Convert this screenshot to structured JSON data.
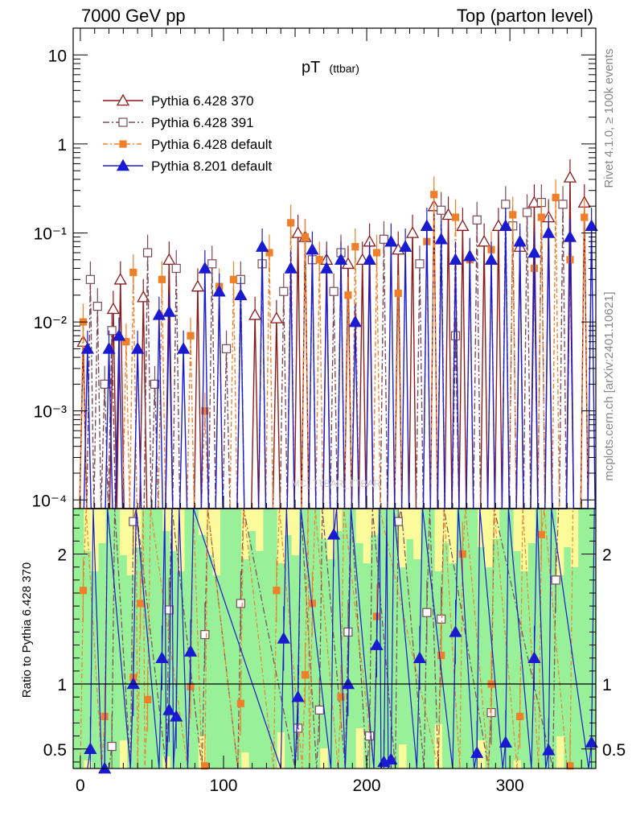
{
  "header": {
    "left": "7000 GeV pp",
    "right": "Top (parton level)"
  },
  "side_labels": {
    "rivet": "Rivet 4.1.0, ≥ 100k events",
    "mcplots": "mcplots.cern.ch [arXiv:2401.10621]"
  },
  "watermark": "MC_TTBAR_TTBAR",
  "colors": {
    "pythia6_370": "#8b1a1a",
    "pythia6_391": "#7a4a5a",
    "pythia6_default": "#f07f2a",
    "pythia8_default": "#1a1ad0",
    "band_green": "#98f098",
    "band_yellow": "#fbfb9b"
  },
  "chart_data": [
    {
      "type": "line",
      "panel": "main",
      "title": "pT",
      "title_sub": "(ttbar)",
      "xlabel": "",
      "ylabel": "",
      "yscale": "log",
      "xlim": [
        -5,
        360
      ],
      "ylim": [
        8e-05,
        20
      ],
      "x_ticks": [
        0,
        100,
        200,
        300
      ],
      "y_ticks": [
        {
          "value": 10,
          "label": "10"
        },
        {
          "value": 1,
          "label": "1"
        },
        {
          "value": 0.1,
          "label": "10⁻¹"
        },
        {
          "value": 0.01,
          "label": "10⁻²"
        },
        {
          "value": 0.001,
          "label": "10⁻³"
        },
        {
          "value": 0.0001,
          "label": "10⁻⁴"
        }
      ],
      "legend": [
        {
          "name": "Pythia 6.428 370",
          "marker": "open-triangle",
          "style": "solid"
        },
        {
          "name": "Pythia 6.428 391",
          "marker": "open-square",
          "style": "dashdot"
        },
        {
          "name": "Pythia 6.428 default",
          "marker": "filled-square",
          "style": "dashdot"
        },
        {
          "name": "Pythia 8.201 default",
          "marker": "filled-triangle",
          "style": "solid"
        }
      ],
      "series": [
        {
          "name": "Pythia 6.428 370",
          "x": [
            2,
            23,
            28,
            44,
            62,
            82,
            122,
            137,
            152,
            157,
            172,
            187,
            197,
            202,
            222,
            232,
            247,
            257,
            267,
            282,
            292,
            307,
            317,
            327,
            342,
            352
          ],
          "values": [
            0.006,
            0.014,
            0.03,
            0.019,
            0.05,
            0.025,
            0.012,
            0.011,
            0.1,
            0.09,
            0.05,
            0.045,
            0.05,
            0.08,
            0.065,
            0.1,
            0.2,
            0.16,
            0.12,
            0.08,
            0.12,
            0.07,
            0.22,
            0.15,
            0.42,
            0.22
          ]
        },
        {
          "name": "Pythia 6.428 391",
          "x": [
            7,
            12,
            17,
            22,
            47,
            52,
            67,
            92,
            102,
            112,
            127,
            142,
            162,
            177,
            182,
            212,
            237,
            252,
            262,
            277,
            297,
            302,
            312,
            322,
            337
          ],
          "values": [
            0.03,
            0.015,
            0.002,
            0.008,
            0.06,
            0.002,
            0.04,
            0.045,
            0.005,
            0.03,
            0.045,
            0.022,
            0.05,
            0.022,
            0.06,
            0.085,
            0.045,
            0.18,
            0.007,
            0.14,
            0.21,
            0.12,
            0.17,
            0.22,
            0.21
          ]
        },
        {
          "name": "Pythia 6.428 default",
          "x": [
            2,
            32,
            37,
            57,
            77,
            87,
            97,
            107,
            132,
            147,
            157,
            167,
            187,
            192,
            207,
            222,
            242,
            247,
            262,
            272,
            287,
            302,
            317,
            322,
            332,
            342,
            352
          ],
          "values": [
            0.01,
            0.006,
            0.036,
            0.03,
            0.007,
            0.001,
            0.025,
            0.03,
            0.06,
            0.13,
            0.09,
            0.05,
            0.02,
            0.07,
            0.06,
            0.021,
            0.08,
            0.27,
            0.15,
            0.05,
            0.065,
            0.16,
            0.04,
            0.15,
            0.25,
            0.05,
            0.15
          ]
        },
        {
          "name": "Pythia 8.201 default",
          "x": [
            5,
            20,
            27,
            40,
            55,
            62,
            72,
            87,
            97,
            112,
            127,
            147,
            162,
            172,
            182,
            192,
            202,
            217,
            227,
            242,
            252,
            262,
            272,
            287,
            297,
            307,
            317,
            327,
            342,
            357
          ],
          "values": [
            0.005,
            0.005,
            0.007,
            0.005,
            0.012,
            0.013,
            0.005,
            0.04,
            0.022,
            0.02,
            0.07,
            0.04,
            0.065,
            0.04,
            0.05,
            0.01,
            0.05,
            0.08,
            0.07,
            0.12,
            0.085,
            0.05,
            0.055,
            0.05,
            0.12,
            0.08,
            0.06,
            0.1,
            0.09,
            0.12
          ]
        }
      ]
    },
    {
      "type": "line",
      "panel": "ratio",
      "ylabel": "Ratio to Pythia 6.428 370",
      "xlim": [
        -5,
        360
      ],
      "ylim": [
        0.35,
        2.35
      ],
      "x_ticks": [
        0,
        100,
        200,
        300
      ],
      "y_ticks": [
        0.5,
        1,
        2
      ],
      "reference": 1,
      "series": [
        {
          "name": "Pythia 6.428 391",
          "x": [
            22,
            37,
            62,
            87,
            112,
            152,
            167,
            187,
            202,
            222,
            242,
            252,
            287,
            332
          ],
          "values": [
            0.52,
            2.25,
            1.57,
            1.38,
            1.62,
            0.66,
            0.8,
            1.4,
            0.6,
            2.25,
            1.55,
            1.5,
            0.78,
            1.8
          ]
        },
        {
          "name": "Pythia 6.428 default",
          "x": [
            2,
            17,
            37,
            42,
            47,
            77,
            87,
            112,
            137,
            157,
            162,
            182,
            207,
            252,
            267,
            287,
            307,
            322,
            342
          ],
          "values": [
            1.72,
            0.75,
            1.05,
            1.62,
            0.88,
            0.98,
            0.37,
            0.85,
            1.72,
            1.07,
            1.62,
            0.9,
            1.52,
            1.22,
            2.0,
            1.0,
            0.75,
            2.15,
            0.37
          ]
        },
        {
          "name": "Pythia 8.201 default",
          "x": [
            7,
            17,
            37,
            57,
            62,
            67,
            77,
            142,
            152,
            177,
            187,
            207,
            212,
            217,
            237,
            262,
            277,
            297,
            317,
            327,
            357
          ],
          "values": [
            0.5,
            0.35,
            1.0,
            1.2,
            0.8,
            0.75,
            1.25,
            1.35,
            0.9,
            2.15,
            1.0,
            1.3,
            0.4,
            0.42,
            1.2,
            1.4,
            0.47,
            0.55,
            1.2,
            0.49,
            0.55
          ]
        }
      ]
    }
  ]
}
